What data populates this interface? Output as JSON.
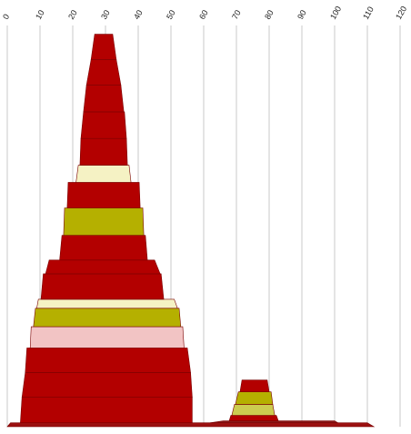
{
  "chart_data": {
    "type": "layered-area",
    "xlim": [
      0,
      120
    ],
    "xticks": [
      0,
      10,
      20,
      30,
      40,
      50,
      60,
      70,
      80,
      90,
      100,
      110,
      120
    ],
    "grid": true,
    "ylim": [
      0,
      100
    ],
    "stacks": [
      {
        "base": 0,
        "bands": [
          {
            "color": "#9b1010",
            "values": [
              0,
              112,
              1,
              110
            ],
            "height": 1
          }
        ]
      },
      {
        "base": 1,
        "bands": [
          {
            "color": "#b30000",
            "values": [
              4,
              56.5,
              4.5,
              56.5
            ],
            "height": 6.5
          },
          {
            "color": "#b30000",
            "values": [
              4.5,
              56.5,
              5.5,
              56
            ],
            "height": 6.3
          },
          {
            "color": "#b30000",
            "values": [
              5.5,
              56,
              6,
              55
            ],
            "height": 6.3
          },
          {
            "color": "#f2c4c4",
            "values": [
              7,
              54,
              7.3,
              53.6
            ],
            "height": 5.4
          },
          {
            "color": "#b5b000",
            "values": [
              8,
              53,
              8.6,
              52.5
            ],
            "height": 4.7
          },
          {
            "color": "#f5f2c4",
            "values": [
              9,
              52,
              9.5,
              51
            ],
            "height": 2.3
          },
          {
            "color": "#b30000",
            "values": [
              10.3,
              47.8,
              11,
              47
            ],
            "height": 6.5
          },
          {
            "color": "#b30000",
            "values": [
              11.7,
              46.7,
              12.8,
              45
            ],
            "height": 3.5
          },
          {
            "color": "#b30000",
            "values": [
              16,
              42.8,
              16.7,
              42.2
            ],
            "height": 6.3
          },
          {
            "color": "#b5b000",
            "values": [
              17.2,
              41.7,
              17.5,
              41.4
            ],
            "height": 7
          },
          {
            "color": "#b30000",
            "values": [
              18.3,
              40.6,
              18.6,
              40.3
            ],
            "height": 6.5
          },
          {
            "color": "#f5f2c4",
            "values": [
              21,
              37.8,
              21.7,
              37.2
            ],
            "height": 4.4
          },
          {
            "color": "#b30000",
            "values": [
              22.2,
              36.7,
              22.5,
              36.4
            ],
            "height": 6.8
          },
          {
            "color": "#b30000",
            "values": [
              22.5,
              36.4,
              23.3,
              35.8
            ],
            "height": 6.8
          },
          {
            "color": "#b30000",
            "values": [
              23.3,
              35.6,
              24.2,
              34.7
            ],
            "height": 6.8
          },
          {
            "color": "#b30000",
            "values": [
              24.2,
              34.7,
              25.6,
              33.3
            ],
            "height": 6.5
          },
          {
            "color": "#b30000",
            "values": [
              25.6,
              33.3,
              26.7,
              32.2
            ],
            "height": 6.5
          }
        ]
      },
      {
        "base": 1,
        "bands": [
          {
            "color": "#8b1a1a",
            "values": [
              62,
              101,
              66,
              100
            ],
            "height": 0.5
          },
          {
            "color": "#b30000",
            "values": [
              67.8,
              82.8,
              68.3,
              82.2
            ],
            "height": 1.4
          },
          {
            "color": "#cccc50",
            "values": [
              68.6,
              81.7,
              69.4,
              81.1
            ],
            "height": 2.8
          },
          {
            "color": "#b5b000",
            "values": [
              69.7,
              81.1,
              70.6,
              80.6
            ],
            "height": 3.2
          },
          {
            "color": "#b30000",
            "values": [
              71.1,
              80,
              71.7,
              79.4
            ],
            "height": 3
          }
        ]
      }
    ]
  }
}
